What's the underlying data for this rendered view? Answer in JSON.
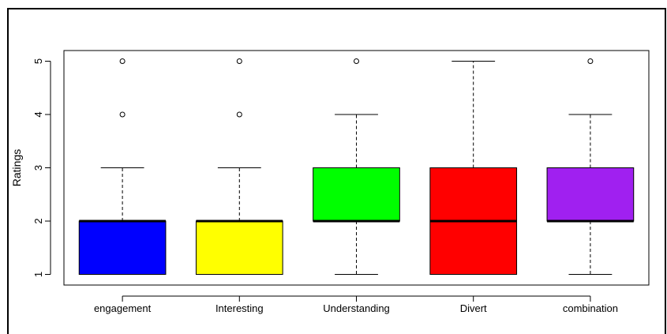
{
  "chart_data": {
    "type": "boxplot",
    "title": "",
    "xlabel": "",
    "ylabel": "Ratings",
    "ylim": [
      0.8,
      5.2
    ],
    "yticks": [
      1,
      2,
      3,
      4,
      5
    ],
    "grid": false,
    "categories": [
      "engagement",
      "Interesting",
      "Understanding",
      "Divert",
      "combination"
    ],
    "boxes": [
      {
        "category": "engagement",
        "whisker_low": 1,
        "q1": 1,
        "median": 2,
        "q3": 2,
        "whisker_high": 3,
        "outliers": [
          4,
          5
        ],
        "color": "#0000ff"
      },
      {
        "category": "Interesting",
        "whisker_low": 1,
        "q1": 1,
        "median": 2,
        "q3": 2,
        "whisker_high": 3,
        "outliers": [
          4,
          5
        ],
        "color": "#ffff00"
      },
      {
        "category": "Understanding",
        "whisker_low": 1,
        "q1": 2,
        "median": 2,
        "q3": 3,
        "whisker_high": 4,
        "outliers": [
          5
        ],
        "color": "#00ff00"
      },
      {
        "category": "Divert",
        "whisker_low": 1,
        "q1": 1,
        "median": 2,
        "q3": 3,
        "whisker_high": 5,
        "outliers": [],
        "color": "#ff0000"
      },
      {
        "category": "combination",
        "whisker_low": 1,
        "q1": 2,
        "median": 2,
        "q3": 3,
        "whisker_high": 4,
        "outliers": [
          5
        ],
        "color": "#a020f0"
      }
    ]
  }
}
